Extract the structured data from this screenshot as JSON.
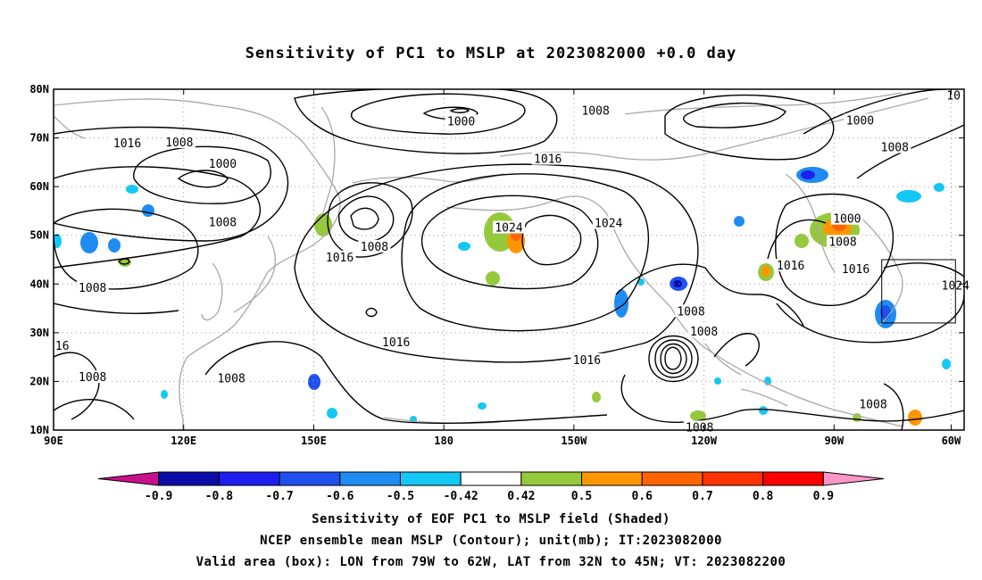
{
  "title": "Sensitivity of PC1 to MSLP at 2023082000 +0.0 day",
  "map": {
    "lon_range": [
      90,
      300
    ],
    "lat_range": [
      10,
      80
    ],
    "lat_ticks": [
      {
        "lat": 80,
        "label": "80N"
      },
      {
        "lat": 70,
        "label": "70N"
      },
      {
        "lat": 60,
        "label": "60N"
      },
      {
        "lat": 50,
        "label": "50N"
      },
      {
        "lat": 40,
        "label": "40N"
      },
      {
        "lat": 30,
        "label": "30N"
      },
      {
        "lat": 20,
        "label": "20N"
      },
      {
        "lat": 10,
        "label": "10N"
      }
    ],
    "lon_ticks": [
      {
        "lon": 90,
        "label": "90E"
      },
      {
        "lon": 120,
        "label": "120E"
      },
      {
        "lon": 150,
        "label": "150E"
      },
      {
        "lon": 180,
        "label": "180"
      },
      {
        "lon": 210,
        "label": "150W"
      },
      {
        "lon": 240,
        "label": "120W"
      },
      {
        "lon": 270,
        "label": "90W"
      },
      {
        "lon": 297,
        "label": "60W"
      }
    ],
    "grid": "dotted",
    "valid_box": {
      "lon_west": 281,
      "lon_east": 298,
      "lat_south": 32,
      "lat_north": 45
    },
    "contour_labels": [
      {
        "text": "1008",
        "lon": 215,
        "lat": 75.5
      },
      {
        "text": "1000",
        "lon": 184,
        "lat": 73.3
      },
      {
        "text": "1000",
        "lon": 276,
        "lat": 73.5
      },
      {
        "text": "1016",
        "lon": 107,
        "lat": 68.8
      },
      {
        "text": "1008",
        "lon": 119,
        "lat": 69.0
      },
      {
        "text": "1008",
        "lon": 284,
        "lat": 68.0
      },
      {
        "text": "1000",
        "lon": 129,
        "lat": 64.6
      },
      {
        "text": "1016",
        "lon": 204,
        "lat": 65.6
      },
      {
        "text": "1008",
        "lon": 129,
        "lat": 52.6
      },
      {
        "text": "1024",
        "lon": 195,
        "lat": 51.5
      },
      {
        "text": "1024",
        "lon": 218,
        "lat": 52.4
      },
      {
        "text": "1000",
        "lon": 273,
        "lat": 53.3
      },
      {
        "text": "1008",
        "lon": 272,
        "lat": 48.6
      },
      {
        "text": "1008",
        "lon": 164,
        "lat": 47.6
      },
      {
        "text": "1016",
        "lon": 156,
        "lat": 45.4
      },
      {
        "text": "1016",
        "lon": 260,
        "lat": 43.7
      },
      {
        "text": "1016",
        "lon": 275,
        "lat": 43.0
      },
      {
        "text": "1008",
        "lon": 99,
        "lat": 39.1
      },
      {
        "text": "1024",
        "lon": 298,
        "lat": 39.6
      },
      {
        "text": "1008",
        "lon": 237,
        "lat": 34.3
      },
      {
        "text": "1008",
        "lon": 240,
        "lat": 30.2
      },
      {
        "text": "1016",
        "lon": 169,
        "lat": 28.0
      },
      {
        "text": "16",
        "lon": 92,
        "lat": 27.2
      },
      {
        "text": "1016",
        "lon": 213,
        "lat": 24.3
      },
      {
        "text": "1008",
        "lon": 99,
        "lat": 20.8
      },
      {
        "text": "1008",
        "lon": 131,
        "lat": 20.5
      },
      {
        "text": "1008",
        "lon": 279,
        "lat": 15.2
      },
      {
        "text": "1008",
        "lon": 239,
        "lat": 10.5
      },
      {
        "text": "10",
        "lon": 305,
        "lat": 78.6
      }
    ]
  },
  "colorbar": {
    "levels": [
      "-0.9",
      "-0.8",
      "-0.7",
      "-0.6",
      "-0.5",
      "-0.42",
      "0.42",
      "0.5",
      "0.6",
      "0.7",
      "0.8",
      "0.9"
    ],
    "colors": [
      "#c8108c",
      "#0c0ca8",
      "#1e1ef0",
      "#1e50f0",
      "#1e8cf0",
      "#14c8f5",
      "#ffffff",
      "#96c83c",
      "#ff9600",
      "#ff6400",
      "#ff3200",
      "#ff0000",
      "#ff96c8"
    ]
  },
  "footer": {
    "line1": "Sensitivity of EOF PC1 to MSLP field (Shaded)",
    "line2": "NCEP ensemble mean MSLP (Contour); unit(mb); IT:2023082000",
    "line3": "Valid area (box): LON from 79W to 62W, LAT from 32N to 45N; VT: 2023082200"
  }
}
